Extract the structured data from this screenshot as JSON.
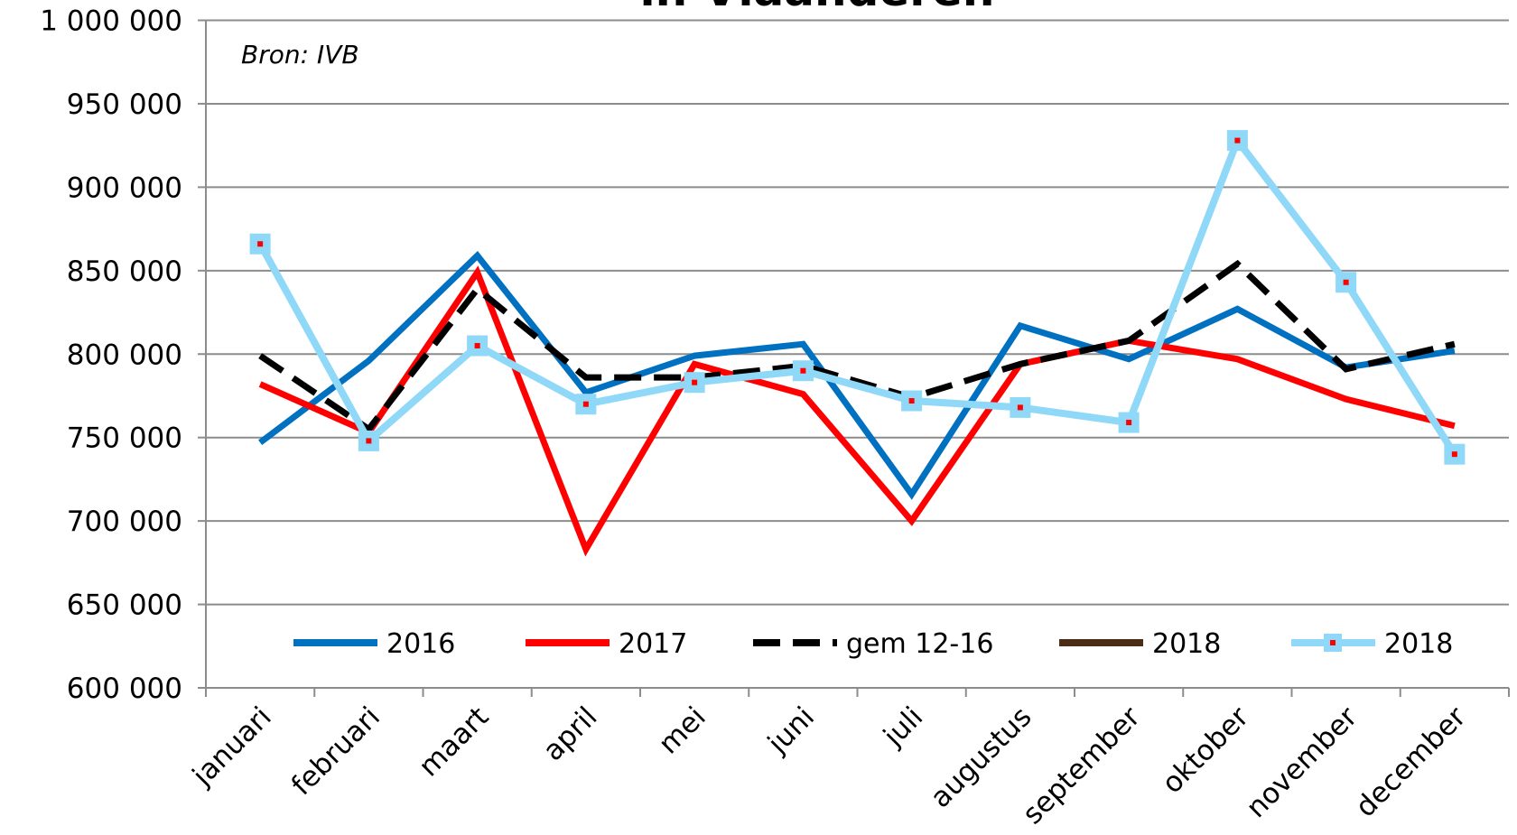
{
  "chart_data": {
    "type": "line",
    "title": "in Vlaanderen",
    "annotation": "Bron: IVB",
    "categories": [
      "januari",
      "februari",
      "maart",
      "april",
      "mei",
      "juni",
      "juli",
      "augustus",
      "september",
      "oktober",
      "november",
      "december"
    ],
    "ylim": [
      600000,
      1000000
    ],
    "yticks": [
      {
        "value": 600000,
        "label": "600 000"
      },
      {
        "value": 650000,
        "label": "650 000"
      },
      {
        "value": 700000,
        "label": "700 000"
      },
      {
        "value": 750000,
        "label": "750 000"
      },
      {
        "value": 800000,
        "label": "800 000"
      },
      {
        "value": 850000,
        "label": "850 000"
      },
      {
        "value": 900000,
        "label": "900 000"
      },
      {
        "value": 950000,
        "label": "950 000"
      },
      {
        "value": 1000000,
        "label": "1 000 000"
      }
    ],
    "grid": true,
    "legend": "bottom",
    "series": [
      {
        "name": "2016",
        "color": "#0070c0",
        "values": [
          747000,
          796000,
          859000,
          777000,
          799000,
          806000,
          716000,
          817000,
          797000,
          827000,
          792000,
          802000
        ]
      },
      {
        "name": "2017",
        "color": "#ff0000",
        "values": [
          782000,
          753000,
          849000,
          683000,
          794000,
          776000,
          700000,
          794000,
          808000,
          797000,
          773000,
          757000
        ]
      },
      {
        "name": "gem 12-16",
        "color": "#000000",
        "dashed": true,
        "values": [
          799000,
          755000,
          839000,
          786000,
          786000,
          793000,
          774000,
          794000,
          808000,
          854000,
          791000,
          806000
        ]
      },
      {
        "name": "2018",
        "color": "#4a2c17",
        "values": [
          null,
          null,
          null,
          null,
          null,
          null,
          null,
          null,
          null,
          null,
          null,
          null
        ]
      },
      {
        "name": "2018",
        "color": "#8fd8f8",
        "marker": "square",
        "values": [
          866000,
          748000,
          805000,
          770000,
          783000,
          790000,
          772000,
          768000,
          759000,
          928000,
          843000,
          740000
        ]
      }
    ]
  }
}
